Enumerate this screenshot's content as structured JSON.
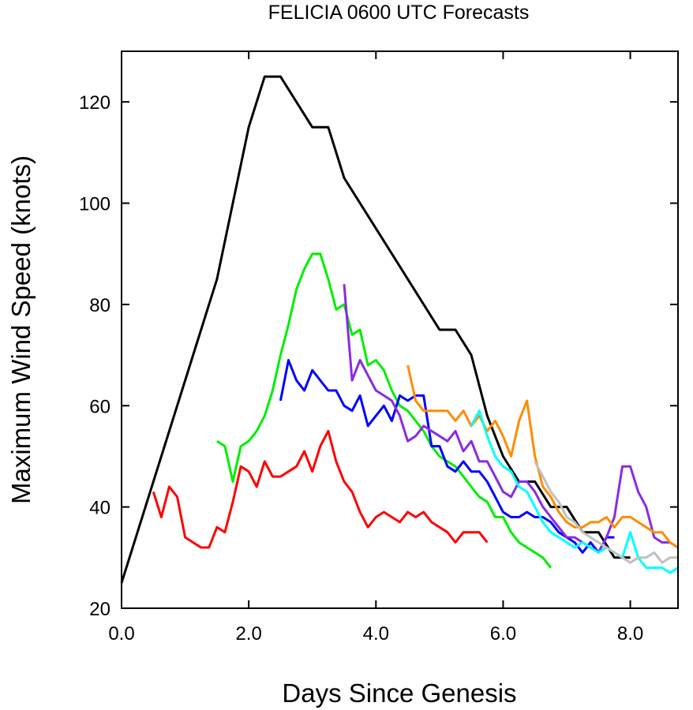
{
  "chart_data": {
    "type": "line",
    "title": "FELICIA 0600 UTC Forecasts",
    "xlabel": "Days Since Genesis",
    "ylabel": "Maximum Wind Speed (knots)",
    "xlim": [
      0,
      8.75
    ],
    "ylim": [
      20,
      130
    ],
    "x_ticks": [
      0,
      2,
      4,
      6,
      8
    ],
    "x_tick_labels": [
      "0.0",
      "2.0",
      "4.0",
      "6.0",
      "8.0"
    ],
    "y_ticks": [
      20,
      40,
      60,
      80,
      100,
      120
    ],
    "y_tick_labels": [
      "20",
      "40",
      "60",
      "80",
      "100",
      "120"
    ],
    "grid": false,
    "series": [
      {
        "color": "#000000",
        "x": [
          0,
          1.5,
          2.0,
          2.25,
          2.5,
          3.0,
          3.25,
          3.5,
          4.0,
          4.5,
          5.0,
          5.25,
          5.5,
          5.75,
          6.0,
          6.25,
          6.5,
          6.75,
          7.0,
          7.25,
          7.5,
          7.75,
          8.0
        ],
        "y": [
          25,
          85,
          115,
          125,
          125,
          115,
          115,
          105,
          95,
          85,
          75,
          75,
          70,
          58,
          50,
          45,
          45,
          40,
          40,
          35,
          35,
          30,
          30
        ]
      },
      {
        "color": "#ff0000",
        "x": [
          0.5,
          0.625,
          0.75,
          0.875,
          1.0,
          1.125,
          1.25,
          1.375,
          1.5,
          1.625,
          1.75,
          1.875,
          2.0,
          2.125,
          2.25,
          2.375,
          2.5,
          2.625,
          2.75,
          2.875,
          3.0,
          3.125,
          3.25,
          3.375,
          3.5,
          3.625,
          3.75,
          3.875,
          4.0,
          4.125,
          4.25,
          4.375,
          4.5,
          4.625,
          4.75,
          4.875,
          5.0,
          5.125,
          5.25,
          5.375,
          5.5,
          5.625,
          5.75
        ],
        "y": [
          43,
          38,
          44,
          42,
          34,
          33,
          32,
          32,
          36,
          35,
          41,
          48,
          47,
          44,
          49,
          46,
          46,
          47,
          48,
          51,
          47,
          52,
          55,
          49,
          45,
          43,
          39,
          36,
          38,
          39,
          38,
          37,
          39,
          38,
          39,
          37,
          36,
          35,
          33,
          35,
          35,
          35,
          33
        ]
      },
      {
        "color": "#00ee00",
        "x": [
          1.5,
          1.625,
          1.75,
          1.875,
          2.0,
          2.125,
          2.25,
          2.375,
          2.5,
          2.625,
          2.75,
          2.875,
          3.0,
          3.125,
          3.25,
          3.375,
          3.5,
          3.625,
          3.75,
          3.875,
          4.0,
          4.125,
          4.25,
          4.375,
          4.5,
          4.625,
          4.75,
          4.875,
          5.0,
          5.125,
          5.25,
          5.375,
          5.5,
          5.625,
          5.75,
          5.875,
          6.0,
          6.125,
          6.25,
          6.375,
          6.5,
          6.625,
          6.75
        ],
        "y": [
          53,
          52,
          45,
          52,
          53,
          55,
          58,
          63,
          70,
          76,
          83,
          87,
          90,
          90,
          85,
          79,
          80,
          74,
          75,
          68,
          69,
          67,
          63,
          60,
          59,
          57,
          55,
          52,
          50,
          49,
          48,
          46,
          44,
          42,
          41,
          38,
          38,
          35,
          33,
          32,
          31,
          30,
          28
        ]
      },
      {
        "color": "#0000ff",
        "x": [
          2.5,
          2.625,
          2.75,
          2.875,
          3.0,
          3.125,
          3.25,
          3.375,
          3.5,
          3.625,
          3.75,
          3.875,
          4.0,
          4.125,
          4.25,
          4.375,
          4.5,
          4.625,
          4.75,
          4.875,
          5.0,
          5.125,
          5.25,
          5.375,
          5.5,
          5.625,
          5.75,
          5.875,
          6.0,
          6.125,
          6.25,
          6.375,
          6.5,
          6.625,
          6.75,
          6.875,
          7.0,
          7.125,
          7.25,
          7.375,
          7.5,
          7.625,
          7.75
        ],
        "y": [
          61,
          69,
          65,
          63,
          67,
          65,
          63,
          63,
          60,
          59,
          62,
          56,
          58,
          60,
          57,
          62,
          61,
          62,
          62,
          52,
          52,
          48,
          47,
          49,
          47,
          47,
          45,
          42,
          39,
          38,
          38,
          39,
          38,
          38,
          37,
          35,
          34,
          33,
          31,
          33,
          31,
          34,
          34
        ]
      },
      {
        "color": "#8a2be2",
        "x": [
          3.5,
          3.625,
          3.75,
          3.875,
          4.0,
          4.125,
          4.25,
          4.375,
          4.5,
          4.625,
          4.75,
          4.875,
          5.0,
          5.125,
          5.25,
          5.375,
          5.5,
          5.625,
          5.75,
          5.875,
          6.0,
          6.125,
          6.25,
          6.375,
          6.5,
          6.625,
          6.75,
          6.875,
          7.0,
          7.125,
          7.25,
          7.375,
          7.5,
          7.625,
          7.75,
          7.875,
          8.0,
          8.125,
          8.25,
          8.375,
          8.5,
          8.625,
          8.75
        ],
        "y": [
          84,
          65,
          69,
          66,
          63,
          62,
          61,
          58,
          53,
          54,
          56,
          55,
          54,
          53,
          55,
          51,
          53,
          49,
          49,
          46,
          43,
          42,
          45,
          45,
          43,
          40,
          38,
          36,
          34,
          34,
          33,
          32,
          31,
          34,
          38,
          48,
          48,
          43,
          40,
          34,
          33,
          33,
          32
        ]
      },
      {
        "color": "#ff8c00",
        "x": [
          4.5,
          4.625,
          4.75,
          4.875,
          5.0,
          5.125,
          5.25,
          5.375,
          5.5,
          5.625,
          5.75,
          5.875,
          6.0,
          6.125,
          6.25,
          6.375,
          6.5,
          6.625,
          6.75,
          6.875,
          7.0,
          7.125,
          7.25,
          7.375,
          7.5,
          7.625,
          7.75,
          7.875,
          8.0,
          8.125,
          8.25,
          8.375,
          8.5,
          8.625,
          8.75
        ],
        "y": [
          68,
          61,
          59,
          59,
          59,
          59,
          57,
          59,
          56,
          58,
          55,
          57,
          54,
          50,
          57,
          61,
          50,
          44,
          42,
          39,
          37,
          36,
          36,
          37,
          37,
          38,
          36,
          38,
          38,
          37,
          36,
          35,
          35,
          33,
          32
        ]
      },
      {
        "color": "#00ffff",
        "x": [
          5.5,
          5.625,
          5.75,
          5.875,
          6.0,
          6.125,
          6.25,
          6.375,
          6.5,
          6.625,
          6.75,
          6.875,
          7.0,
          7.125,
          7.25,
          7.375,
          7.5,
          7.625,
          7.75,
          7.875,
          8.0,
          8.125,
          8.25,
          8.375,
          8.5,
          8.625,
          8.75
        ],
        "y": [
          56,
          59,
          54,
          50,
          48,
          47,
          44,
          43,
          40,
          37,
          35,
          34,
          33,
          32,
          33,
          32,
          31,
          32,
          31,
          30,
          35,
          30,
          28,
          28,
          28,
          27,
          28
        ]
      },
      {
        "color": "#c0c0c0",
        "x": [
          6.5,
          6.625,
          6.75,
          6.875,
          7.0,
          7.125,
          7.25,
          7.375,
          7.5,
          7.625,
          7.75,
          7.875,
          8.0,
          8.125,
          8.25,
          8.375,
          8.5,
          8.625,
          8.75
        ],
        "y": [
          49,
          46,
          43,
          41,
          38,
          37,
          35,
          34,
          33,
          32,
          31,
          30,
          29,
          30,
          30,
          31,
          29,
          30,
          30
        ]
      }
    ]
  }
}
